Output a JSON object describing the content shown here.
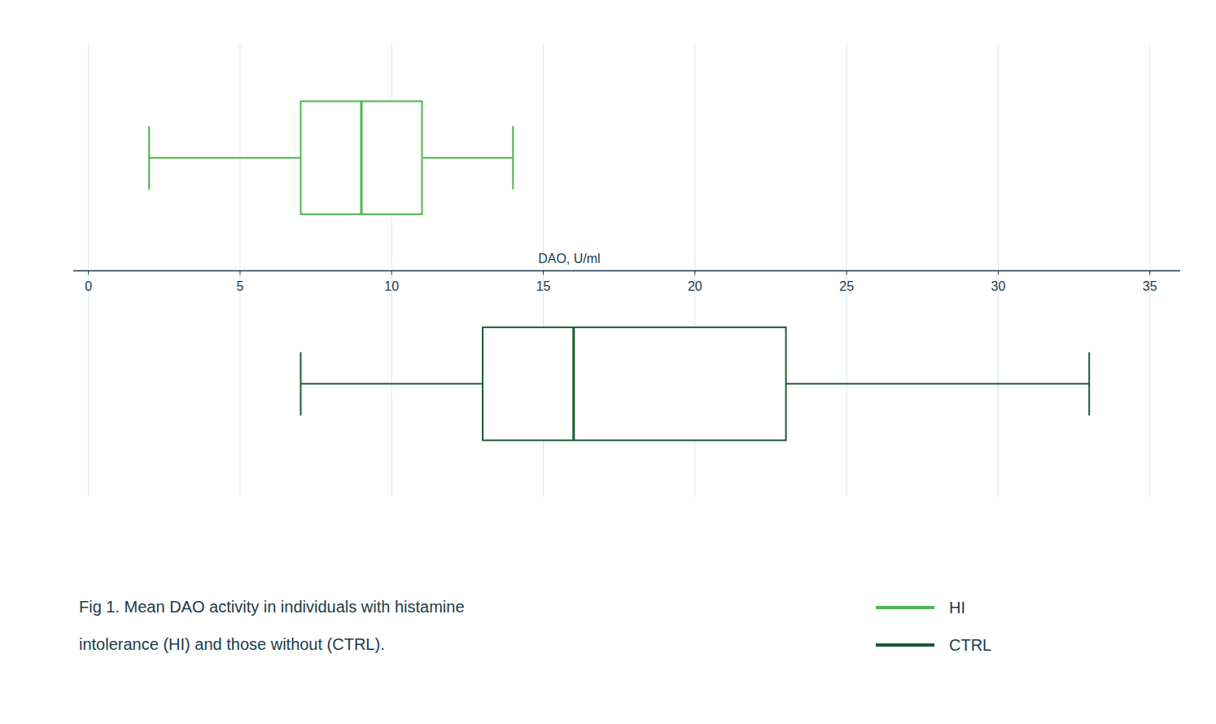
{
  "chart_data": {
    "type": "box",
    "orientation": "horizontal",
    "x_label": "DAO, U/ml",
    "annotations": [
      "Fig 1.  Mean DAO activity in individuals with histamine",
      "intolerance (HI) and those without (CTRL)."
    ],
    "series": [
      {
        "name": "HI",
        "color": "#4db84d",
        "whisker_low": 2.0,
        "q1": 7.0,
        "median": 9.0,
        "q3": 11.0,
        "whisker_high": 14.0
      },
      {
        "name": "CTRL",
        "color": "#1a5c35",
        "whisker_low": 7.0,
        "q1": 13.0,
        "median": 16.0,
        "q3": 23.0,
        "whisker_high": 33.0
      }
    ],
    "xlim": [
      -0.5,
      36
    ],
    "xticks": [
      0,
      5,
      10,
      15,
      20,
      25,
      30,
      35
    ],
    "grid": true,
    "legend": "bottom-right"
  }
}
